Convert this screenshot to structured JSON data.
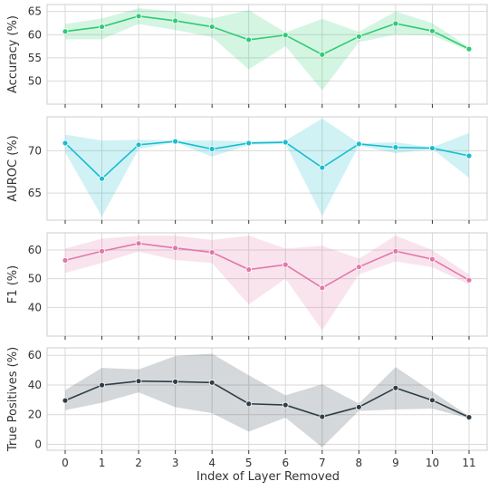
{
  "chart_data": {
    "type": "line",
    "xlabel": "Index of Layer Removed",
    "x": [
      0,
      1,
      2,
      3,
      4,
      5,
      6,
      7,
      8,
      9,
      10,
      11
    ],
    "grid": true,
    "panels": [
      {
        "ylabel": "Accuracy (%)",
        "color": "#2ecc71",
        "ylim": [
          45,
          66.5
        ],
        "yticks": [
          50,
          55,
          60,
          65
        ],
        "values": [
          60.7,
          61.7,
          64.0,
          63.0,
          61.7,
          58.9,
          59.9,
          55.7,
          59.6,
          62.4,
          60.8,
          56.9
        ],
        "lower": [
          59.0,
          59.0,
          62.3,
          61.0,
          59.5,
          52.5,
          57.5,
          48.0,
          58.4,
          60.0,
          59.8,
          56.5
        ],
        "upper": [
          62.3,
          63.5,
          65.7,
          65.0,
          63.5,
          65.3,
          60.5,
          63.4,
          60.6,
          65.0,
          62.5,
          57.3
        ]
      },
      {
        "ylabel": "AUROC (%)",
        "color": "#17becf",
        "ylim": [
          61.8,
          74.0
        ],
        "yticks": [
          65,
          70
        ],
        "values": [
          70.9,
          66.7,
          70.7,
          71.1,
          70.2,
          70.9,
          71.0,
          68.0,
          70.8,
          70.4,
          70.3,
          69.4
        ],
        "lower": [
          69.8,
          62.2,
          70.2,
          71.0,
          69.3,
          70.7,
          70.8,
          62.3,
          70.6,
          69.7,
          70.2,
          66.8
        ],
        "upper": [
          71.9,
          71.2,
          71.3,
          71.2,
          71.2,
          71.1,
          71.2,
          73.8,
          70.9,
          71.0,
          70.4,
          72.1
        ]
      },
      {
        "ylabel": "F1 (%)",
        "color": "#e377a8",
        "ylim": [
          30,
          66
        ],
        "yticks": [
          40,
          50,
          60
        ],
        "values": [
          56.4,
          59.6,
          62.3,
          60.7,
          59.2,
          53.2,
          54.9,
          46.8,
          54.1,
          59.6,
          56.8,
          49.5
        ],
        "lower": [
          52.0,
          55.5,
          59.5,
          56.5,
          55.5,
          41.0,
          50.0,
          32.0,
          51.5,
          56.0,
          54.0,
          48.0
        ],
        "upper": [
          60.5,
          64.0,
          65.0,
          65.0,
          63.5,
          65.0,
          60.5,
          61.5,
          57.0,
          65.0,
          60.0,
          51.5
        ]
      },
      {
        "ylabel": "True Positives (%)",
        "color": "#2f3e46",
        "ylim": [
          -4,
          65
        ],
        "yticks": [
          0,
          20,
          40,
          60
        ],
        "values": [
          29.5,
          39.9,
          42.6,
          42.2,
          41.6,
          27.3,
          26.5,
          18.6,
          25.1,
          38.0,
          29.7,
          18.2
        ],
        "lower": [
          23.0,
          28.0,
          35.0,
          25.0,
          21.0,
          8.5,
          18.0,
          -2.0,
          22.5,
          23.5,
          24.0,
          17.5
        ],
        "upper": [
          36.5,
          51.5,
          50.5,
          59.5,
          61.0,
          46.5,
          33.0,
          40.5,
          27.5,
          52.0,
          35.5,
          19.0
        ]
      }
    ]
  }
}
